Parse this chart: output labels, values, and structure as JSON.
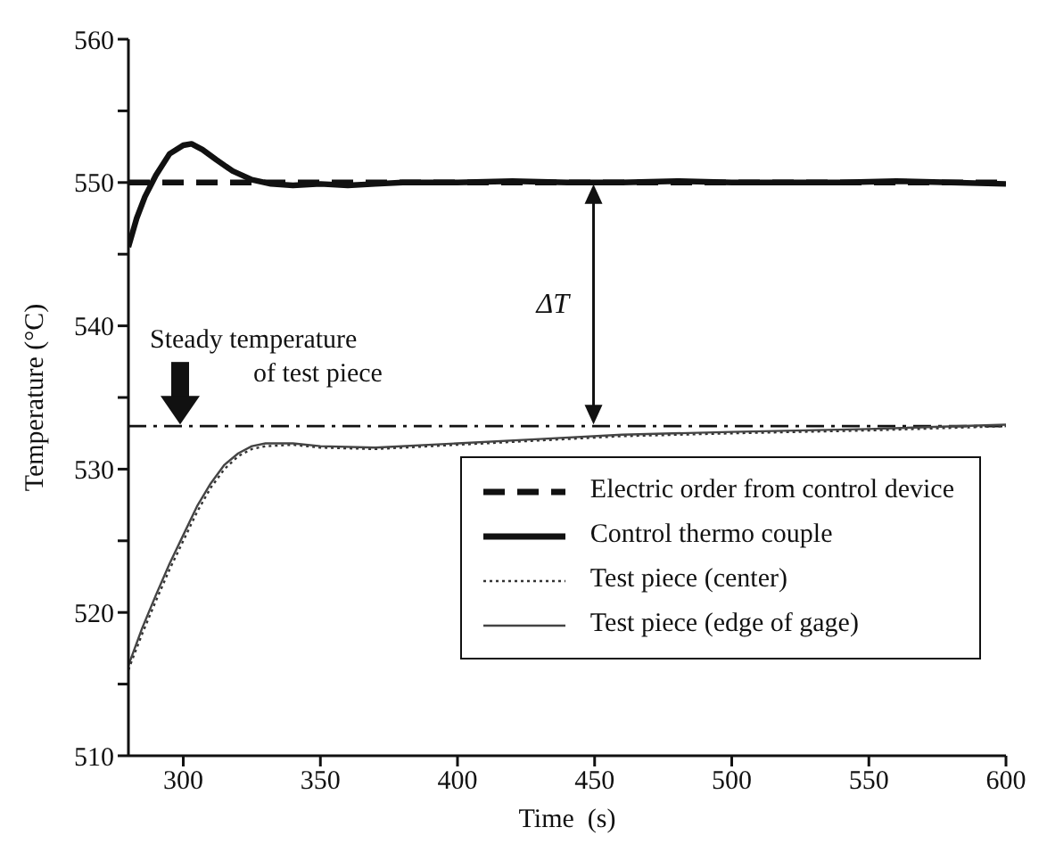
{
  "chart_data": {
    "type": "line",
    "xlabel": "Time  (s)",
    "ylabel": "Temperature (°C)",
    "xlim": [
      280,
      600
    ],
    "xticks": [
      300,
      350,
      400,
      450,
      500,
      550,
      600
    ],
    "ylim": [
      510,
      560
    ],
    "yticks": [
      510,
      {
        "value": 515,
        "label": null
      },
      520,
      {
        "value": 525,
        "label": null
      },
      530,
      {
        "value": 535,
        "label": null
      },
      540,
      {
        "value": 545,
        "label": null
      },
      550,
      {
        "value": 555,
        "label": null
      },
      560
    ],
    "legend": "bottom right",
    "series": [
      {
        "name": "Electric order from control device",
        "color": "#111111",
        "line_style": "dashed",
        "x": [
          280,
          600
        ],
        "values": [
          550,
          550
        ]
      },
      {
        "name": "Control thermo couple",
        "color": "#111111",
        "line_style": "solid",
        "x": [
          280,
          283,
          286,
          290,
          295,
          300,
          303,
          307,
          312,
          318,
          325,
          332,
          340,
          350,
          360,
          370,
          380,
          400,
          420,
          440,
          460,
          480,
          500,
          520,
          540,
          560,
          580,
          600
        ],
        "values": [
          545.5,
          547.5,
          549,
          550.5,
          552,
          552.6,
          552.7,
          552.3,
          551.6,
          550.8,
          550.2,
          549.9,
          549.8,
          549.9,
          549.8,
          549.9,
          550,
          550,
          550.1,
          550,
          550,
          550.1,
          550,
          550,
          550,
          550.1,
          550,
          549.9
        ]
      },
      {
        "name": "Test piece (center)",
        "color": "#333333",
        "line_style": "dotted",
        "x": [
          280,
          285,
          290,
          295,
          300,
          305,
          310,
          315,
          320,
          325,
          330,
          340,
          350,
          370,
          400,
          430,
          460,
          500,
          550,
          600
        ],
        "values": [
          516,
          518.5,
          520.8,
          523,
          525,
          527,
          528.7,
          530,
          530.9,
          531.4,
          531.6,
          531.7,
          531.5,
          531.4,
          531.7,
          532,
          532.3,
          532.5,
          532.7,
          533
        ]
      },
      {
        "name": "Test piece (edge of gage)",
        "color": "#444444",
        "line_style": "solid",
        "x": [
          280,
          285,
          290,
          295,
          300,
          305,
          310,
          315,
          320,
          325,
          330,
          340,
          350,
          370,
          400,
          430,
          460,
          500,
          550,
          600
        ],
        "values": [
          516.3,
          518.9,
          521.2,
          523.4,
          525.4,
          527.4,
          529,
          530.3,
          531.1,
          531.6,
          531.8,
          531.8,
          531.6,
          531.5,
          531.8,
          532.1,
          532.4,
          532.6,
          532.8,
          533.1
        ]
      }
    ],
    "ref_lines": [
      {
        "axis": "y",
        "value": 533,
        "line_style": "dashdot"
      }
    ],
    "annotations": [
      "Steady temperature of test piece",
      "ΔT"
    ]
  }
}
